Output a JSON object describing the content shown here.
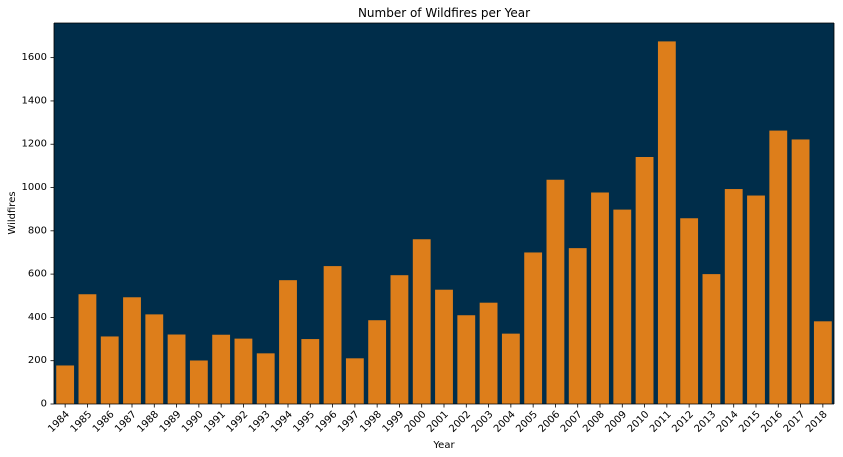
{
  "chart_data": {
    "type": "bar",
    "title": "Number of Wildfires per Year",
    "xlabel": "Year",
    "ylabel": "Wildfires",
    "ylim": [
      0,
      1760
    ],
    "yticks": [
      0,
      200,
      400,
      600,
      800,
      1000,
      1200,
      1400,
      1600
    ],
    "grid": false,
    "legend": "none",
    "categories": [
      "1984",
      "1985",
      "1986",
      "1987",
      "1988",
      "1989",
      "1990",
      "1991",
      "1992",
      "1993",
      "1994",
      "1995",
      "1996",
      "1997",
      "1998",
      "1999",
      "2000",
      "2001",
      "2002",
      "2003",
      "2004",
      "2005",
      "2006",
      "2007",
      "2008",
      "2009",
      "2010",
      "2011",
      "2012",
      "2013",
      "2014",
      "2015",
      "2016",
      "2017",
      "2018"
    ],
    "values": [
      178,
      507,
      312,
      493,
      414,
      321,
      201,
      320,
      302,
      234,
      572,
      300,
      637,
      211,
      387,
      595,
      761,
      528,
      410,
      468,
      325,
      700,
      1036,
      720,
      977,
      898,
      1141,
      1675,
      858,
      600,
      993,
      963,
      1263,
      1222,
      382
    ],
    "colors": {
      "plot_background": "#002d4a",
      "bar": "#dd7e1b",
      "axis": "#000000",
      "figure_background": "#ffffff"
    }
  }
}
